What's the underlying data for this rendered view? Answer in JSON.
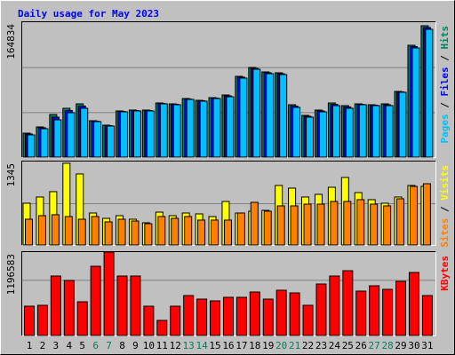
{
  "chart_data": {
    "type": "bar",
    "title": "Daily usage for May 2023",
    "categories": [
      "1",
      "2",
      "3",
      "4",
      "5",
      "6",
      "7",
      "8",
      "9",
      "10",
      "11",
      "12",
      "13",
      "14",
      "15",
      "16",
      "17",
      "18",
      "19",
      "20",
      "21",
      "22",
      "23",
      "24",
      "25",
      "26",
      "27",
      "28",
      "29",
      "30",
      "31"
    ],
    "weekends": [
      "6",
      "7",
      "13",
      "14",
      "20",
      "21",
      "27",
      "28"
    ],
    "weekend_color": "#00805c",
    "legend_separator": " / ",
    "panels": [
      {
        "ylim": [
          0,
          164834
        ],
        "yticks": [
          164834
        ],
        "series": [
          {
            "name": "Hits",
            "color": "#00805c",
            "values": [
              29280,
              36870,
              52050,
              59640,
              65060,
              44460,
              39040,
              56390,
              57470,
              57470,
              66150,
              65060,
              71570,
              69400,
              72660,
              75910,
              98680,
              109530,
              104100,
              103020,
              63980,
              50970,
              57470,
              66150,
              62900,
              65060,
              63980,
              65060,
              80250,
              136640,
              160500
            ]
          },
          {
            "name": "Files",
            "color": "#0000ff",
            "values": [
              28200,
              35800,
              48800,
              56900,
              62300,
              43900,
              38500,
              55800,
              56900,
              56900,
              65600,
              64500,
              71000,
              68900,
              72100,
              74800,
              97600,
              108400,
              103000,
              101900,
              62300,
              49900,
              56400,
              64500,
              61300,
              64500,
              63400,
              64000,
              79700,
              135000,
              158300
            ]
          },
          {
            "name": "Pages",
            "color": "#00c0ff",
            "values": [
              27110,
              34700,
              45540,
              54220,
              59640,
              43380,
              37950,
              55300,
              56390,
              56390,
              65060,
              63980,
              70490,
              68320,
              71570,
              73740,
              96510,
              107360,
              101930,
              100850,
              60730,
              48800,
              55300,
              62900,
              59640,
              63980,
              62900,
              62900,
              79160,
              133380,
              156150
            ]
          }
        ]
      },
      {
        "ylim": [
          0,
          1345
        ],
        "yticks": [
          1345
        ],
        "series": [
          {
            "name": "Visits",
            "color": "#ffff00",
            "values": [
              673,
              773,
              859,
              1317,
              1145,
              515,
              429,
              472,
              415,
              358,
              529,
              472,
              515,
              501,
              458,
              701,
              515,
              544,
              558,
              959,
              916,
              773,
              816,
              930,
              1088,
              844,
              730,
              673,
              773,
              959,
              944
            ]
          },
          {
            "name": "Sites",
            "color": "#ff8000",
            "values": [
              415,
              472,
              487,
              458,
              415,
              458,
              372,
              415,
              386,
              343,
              458,
              429,
              458,
              401,
              401,
              401,
              515,
              687,
              544,
              630,
              630,
              658,
              658,
              701,
              701,
              730,
              658,
              630,
              744,
              944,
              987
            ]
          }
        ]
      },
      {
        "ylim": [
          0,
          1196583
        ],
        "yticks": [
          1196583
        ],
        "series": [
          {
            "name": "KBytes",
            "color": "#ff0000",
            "values": [
              420080,
              432810,
              852880,
              789240,
              483730,
              992910,
              1196583,
              852880,
              852880,
              420080,
              216400,
              420080,
              572830,
              521910,
              496450,
              547370,
              547370,
              623750,
              521910,
              649210,
              611020,
              432810,
              738320,
              852880,
              929260,
              636480,
              712860,
              661940,
              776510,
              903800,
              572830
            ]
          }
        ]
      }
    ]
  }
}
